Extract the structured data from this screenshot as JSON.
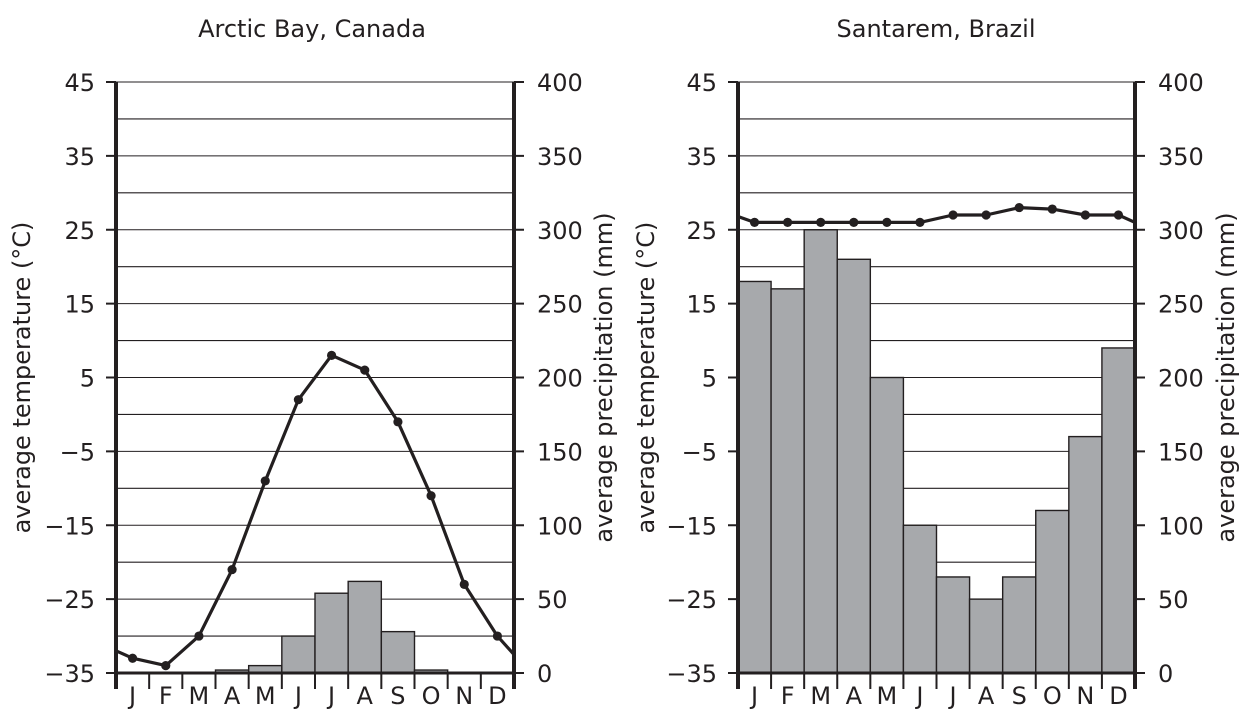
{
  "chart_data": [
    {
      "type": "bar",
      "title": "Arctic Bay, Canada",
      "categories": [
        "J",
        "F",
        "M",
        "A",
        "M",
        "J",
        "J",
        "A",
        "S",
        "O",
        "N",
        "D"
      ],
      "ylabel_left": "average temperature (°C)",
      "ylabel_right": "average precipitation (mm)",
      "yticks_left": [
        "45",
        "35",
        "25",
        "15",
        "5",
        "−5",
        "−15",
        "−25",
        "−35"
      ],
      "yticks_right": [
        "400",
        "350",
        "300",
        "250",
        "200",
        "150",
        "100",
        "50",
        "0"
      ],
      "ylim_temperature": [
        -35,
        45
      ],
      "ylim_precipitation": [
        0,
        400
      ],
      "grid": true,
      "series": [
        {
          "name": "average precipitation",
          "kind": "bar",
          "values": [
            0,
            0,
            0,
            2,
            5,
            25,
            54,
            62,
            28,
            2,
            0,
            0
          ]
        },
        {
          "name": "average temperature",
          "kind": "line",
          "values": [
            -33,
            -34,
            -30,
            -21,
            -9,
            2,
            8,
            6,
            -1,
            -11,
            -23,
            -30
          ],
          "edge_start": -32,
          "edge_end": -32.5
        }
      ]
    },
    {
      "type": "bar",
      "title": "Santarem, Brazil",
      "categories": [
        "J",
        "F",
        "M",
        "A",
        "M",
        "J",
        "J",
        "A",
        "S",
        "O",
        "N",
        "D"
      ],
      "ylabel_left": "average temperature (°C)",
      "ylabel_right": "average precipitation (mm)",
      "yticks_left": [
        "45",
        "35",
        "25",
        "15",
        "5",
        "−5",
        "−15",
        "−25",
        "−35"
      ],
      "yticks_right": [
        "400",
        "350",
        "300",
        "250",
        "200",
        "150",
        "100",
        "50",
        "0"
      ],
      "ylim_temperature": [
        -35,
        45
      ],
      "ylim_precipitation": [
        0,
        400
      ],
      "grid": true,
      "series": [
        {
          "name": "average precipitation",
          "kind": "bar",
          "values": [
            265,
            260,
            300,
            280,
            200,
            100,
            65,
            50,
            65,
            110,
            160,
            220
          ]
        },
        {
          "name": "average temperature",
          "kind": "line",
          "values": [
            26,
            26,
            26,
            26,
            26,
            26,
            27,
            27,
            28,
            27.8,
            27,
            27
          ],
          "edge_start": 26.8,
          "edge_end": 26
        }
      ]
    }
  ]
}
